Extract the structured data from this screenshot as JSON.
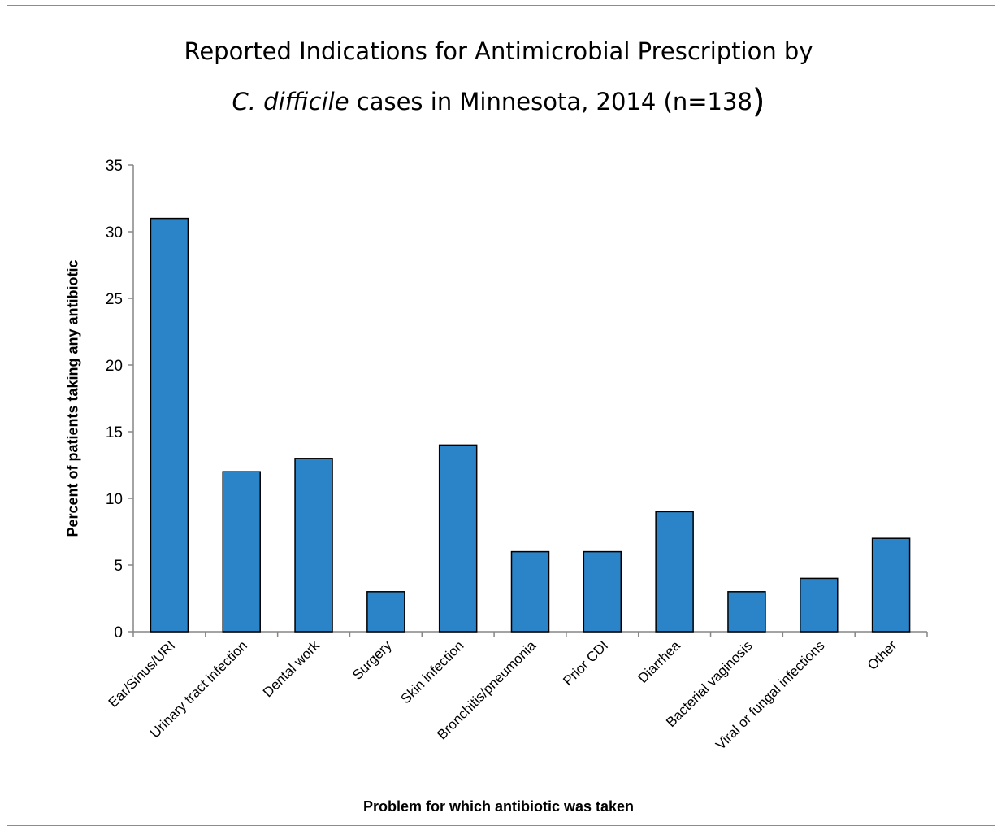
{
  "chart_data": {
    "type": "bar",
    "title_line1": "Reported Indications for Antimicrobial Prescription by",
    "title_line2_italic": "C. difficile",
    "title_line2_rest": " cases in Minnesota, 2014  (n=138",
    "title_line2_paren": ")",
    "xlabel": "Problem for which antibiotic was taken",
    "ylabel": "Percent of patients taking any antibiotic",
    "categories": [
      "Ear/Sinus/URI",
      "Urinary tract infection",
      "Dental work",
      "Surgery",
      "Skin infection",
      "Bronchitis/pneumonia",
      "Prior CDI",
      "Diarrhea",
      "Bacterial vaginosis",
      "Viral or fungal infections",
      "Other"
    ],
    "values": [
      31,
      12,
      13,
      3,
      14,
      6,
      6,
      9,
      3,
      4,
      7
    ],
    "ylim": [
      0,
      35
    ],
    "yticks": [
      0,
      5,
      10,
      15,
      20,
      25,
      30,
      35
    ],
    "bar_color": "#2b83c8",
    "grid": false,
    "legend": "none"
  }
}
